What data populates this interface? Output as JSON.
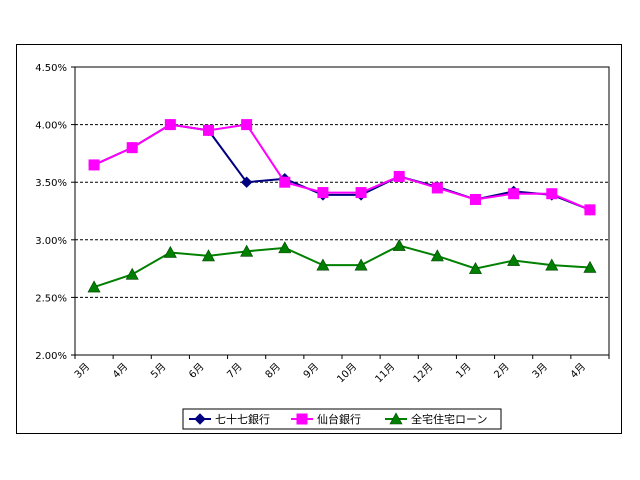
{
  "chart_data": {
    "type": "line",
    "title": "",
    "xlabel": "",
    "ylabel": "",
    "categories": [
      "3月",
      "4月",
      "5月",
      "6月",
      "7月",
      "8月",
      "9月",
      "10月",
      "11月",
      "12月",
      "1月",
      "2月",
      "3月",
      "4月"
    ],
    "ylim": [
      2.0,
      4.5
    ],
    "yticks": [
      "2.00%",
      "2.50%",
      "3.00%",
      "3.50%",
      "4.00%",
      "4.50%"
    ],
    "grid": "horizontal dashed",
    "legend_position": "bottom",
    "series": [
      {
        "name": "七十七銀行",
        "color": "#000080",
        "marker": "diamond",
        "values": [
          3.65,
          3.8,
          4.0,
          3.95,
          3.5,
          3.53,
          3.39,
          3.39,
          3.55,
          3.46,
          3.35,
          3.42,
          3.39,
          3.26
        ]
      },
      {
        "name": "仙台銀行",
        "color": "#FF00FF",
        "marker": "square",
        "values": [
          3.65,
          3.8,
          4.0,
          3.95,
          4.0,
          3.5,
          3.41,
          3.41,
          3.55,
          3.45,
          3.35,
          3.4,
          3.4,
          3.26
        ]
      },
      {
        "name": "全宅住宅ローン",
        "color": "#008000",
        "marker": "triangle",
        "values": [
          2.59,
          2.7,
          2.89,
          2.86,
          2.9,
          2.93,
          2.78,
          2.78,
          2.95,
          2.86,
          2.75,
          2.82,
          2.78,
          2.76
        ]
      }
    ]
  }
}
